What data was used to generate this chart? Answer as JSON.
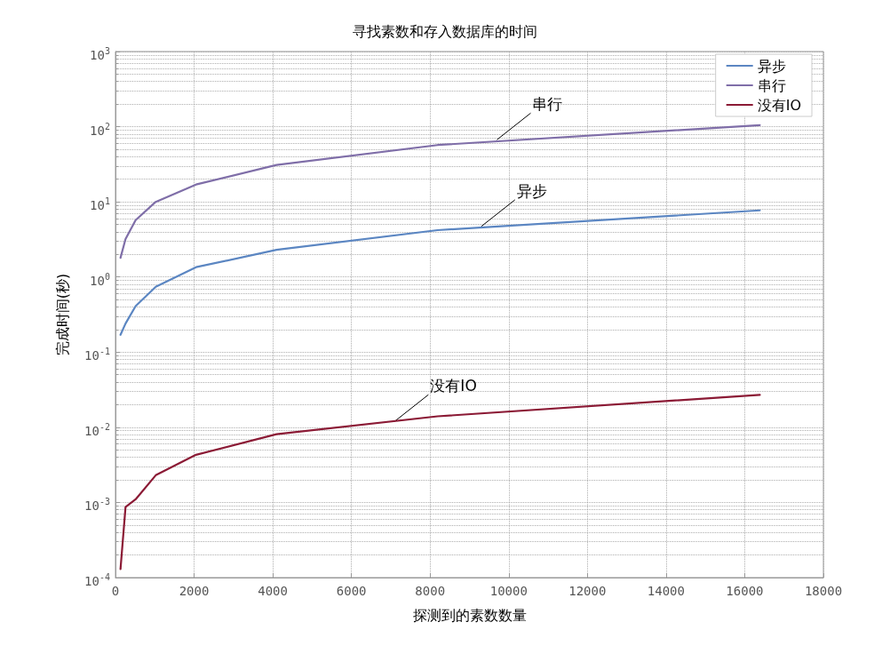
{
  "chart_data": {
    "type": "line",
    "title": "寻找素数和存入数据库的时间",
    "xlabel": "探测到的素数数量",
    "ylabel": "完成时间(秒)",
    "x": [
      128,
      256,
      512,
      1024,
      2048,
      4096,
      8192,
      16384
    ],
    "series": [
      {
        "name": "异步",
        "color": "#5b86c2",
        "values": [
          0.17,
          0.24,
          0.41,
          0.74,
          1.35,
          2.3,
          4.2,
          7.7
        ]
      },
      {
        "name": "串行",
        "color": "#7f6ea8",
        "values": [
          1.8,
          3.2,
          5.7,
          10,
          17,
          31,
          57,
          105
        ]
      },
      {
        "name": "没有IO",
        "color": "#8b1a35",
        "values": [
          0.00013,
          0.00087,
          0.0011,
          0.0023,
          0.0043,
          0.0081,
          0.014,
          0.027
        ]
      }
    ],
    "xlim": [
      0,
      18000
    ],
    "xticks": [
      0,
      2000,
      4000,
      6000,
      8000,
      10000,
      12000,
      14000,
      16000,
      18000
    ],
    "ylim": [
      0.0001,
      1000
    ],
    "yticks": [
      {
        "value": 0.0001,
        "label": "10$^{-4}$"
      },
      {
        "value": 0.001,
        "label": "10$^{-3}$"
      },
      {
        "value": 0.01,
        "label": "10$^{-2}$"
      },
      {
        "value": 0.1,
        "label": "10$^{-1}$"
      },
      {
        "value": 1,
        "label": "10$^{0}$"
      },
      {
        "value": 10,
        "label": "10$^{1}$"
      },
      {
        "value": 100,
        "label": "10$^{2}$"
      },
      {
        "value": 1000,
        "label": "10$^{3}$"
      }
    ],
    "log": "y",
    "grid": true,
    "legend": "top right",
    "marker": "none",
    "line_style": "solid",
    "annotations": [
      {
        "text": "串行",
        "x": 9700,
        "y": 67
      },
      {
        "text": "异步",
        "x": 9300,
        "y": 4.7
      },
      {
        "text": "没有IO",
        "x": 7100,
        "y": 0.012
      }
    ]
  }
}
